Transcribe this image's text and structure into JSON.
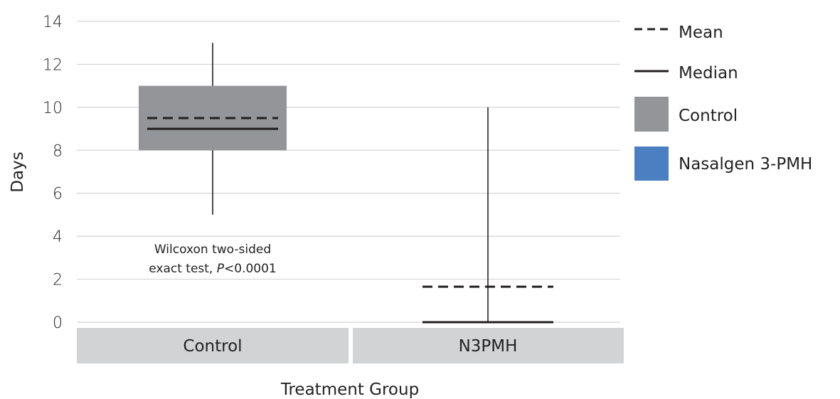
{
  "chart_data": {
    "type": "boxplot",
    "title": "",
    "xlabel": "Treatment Group",
    "ylabel": "Days",
    "ylim": [
      0,
      14
    ],
    "yticks": [
      0,
      2,
      4,
      6,
      8,
      10,
      12,
      14
    ],
    "grid": true,
    "legend_position": "right",
    "categories": [
      "Control",
      "N3PMH"
    ],
    "series": [
      {
        "name": "Control",
        "color": "#939598",
        "min": 5,
        "q1": 8,
        "median": 9,
        "mean": 9.5,
        "q3": 11,
        "max": 13
      },
      {
        "name": "Nasalgen 3-PMH",
        "color": "#4a7fc1",
        "min": 0,
        "q1": 0,
        "median": 0,
        "mean": 1.65,
        "q3": 0,
        "max": 10
      }
    ],
    "legend": [
      {
        "label": "Mean",
        "kind": "dashed-line"
      },
      {
        "label": "Median",
        "kind": "solid-line"
      },
      {
        "label": "Control",
        "kind": "swatch",
        "color": "#939598"
      },
      {
        "label": "Nasalgen 3-PMH",
        "kind": "swatch",
        "color": "#4a7fc1"
      }
    ],
    "annotation": {
      "line1": "Wilcoxon two-sided",
      "line2_prefix": "exact test, ",
      "line2_italic": "P",
      "line2_suffix": "<0.0001"
    }
  }
}
